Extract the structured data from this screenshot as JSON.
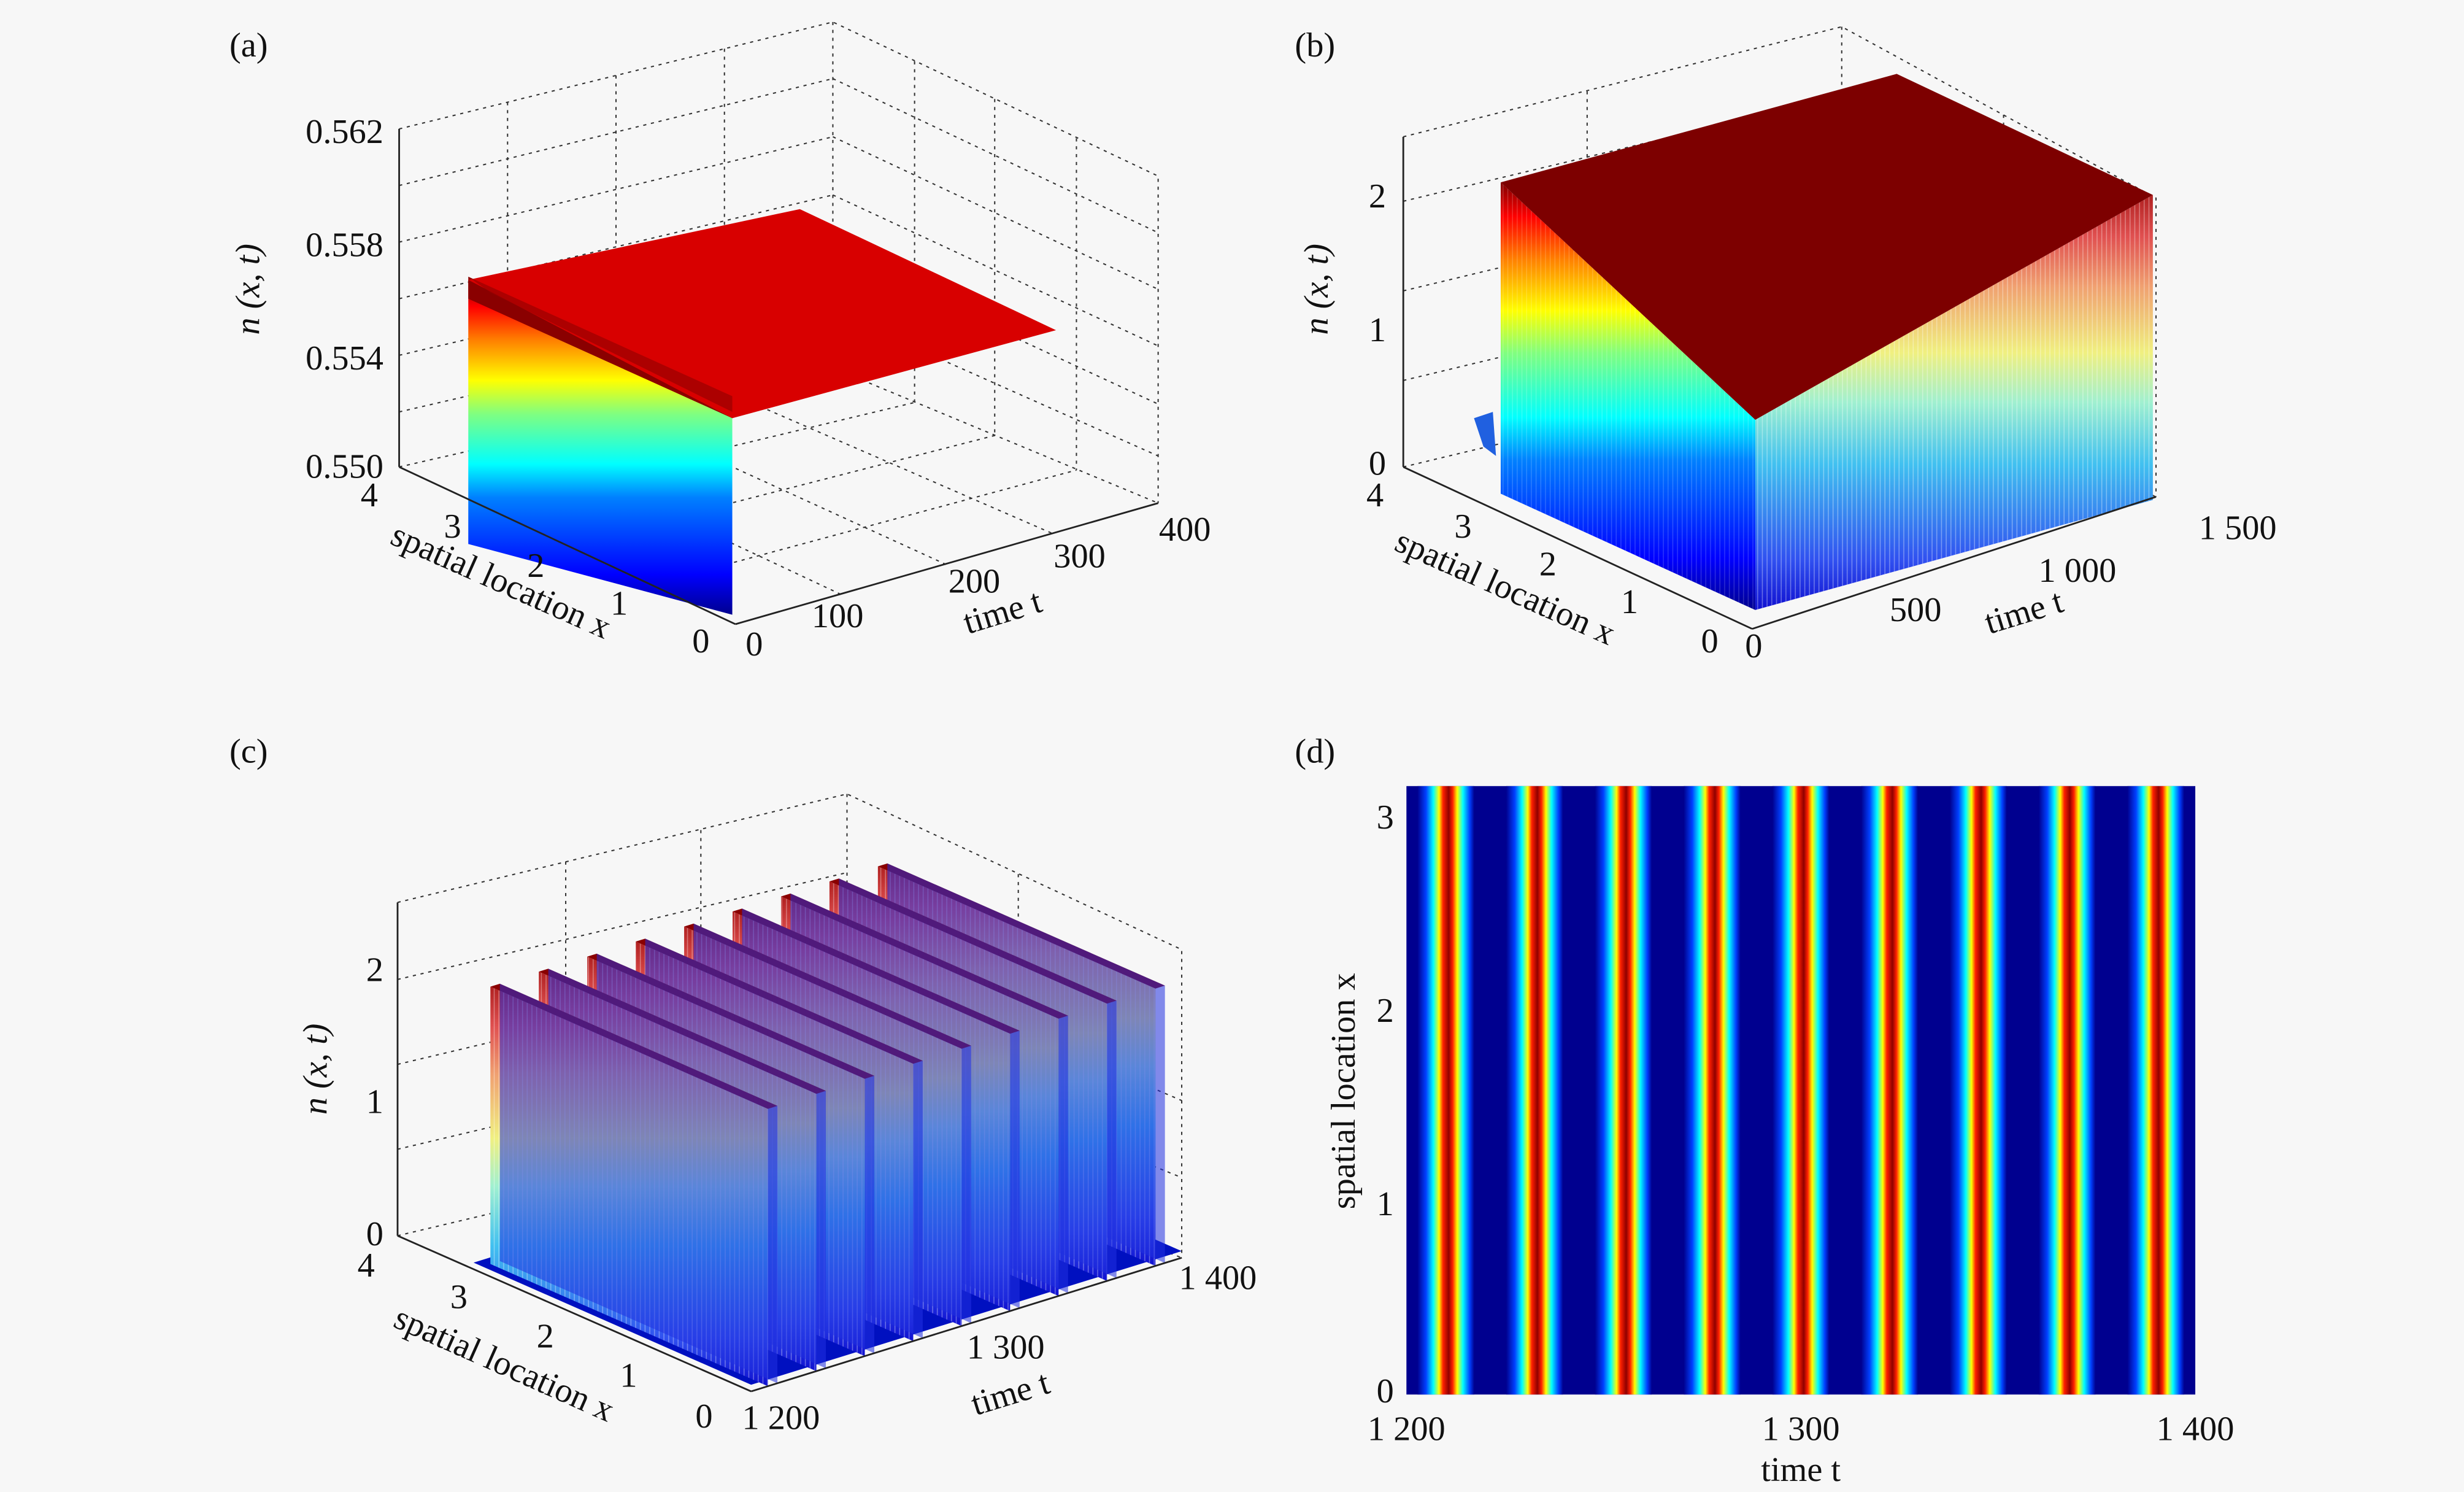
{
  "figure": {
    "background": "#f7f7f7",
    "colormap": "jet",
    "colormap_stops": [
      "#00008f",
      "#0000ff",
      "#0080ff",
      "#00ffff",
      "#80ff80",
      "#ffff00",
      "#ff8000",
      "#ff0000",
      "#800000"
    ]
  },
  "chart_data": [
    {
      "panel": "(a)",
      "type": "surface3d",
      "title": "",
      "xlabel": "spatial location x",
      "ylabel": "time t",
      "zlabel": "n (x, t)",
      "x_ticks": [
        "0",
        "1",
        "2",
        "3",
        "4"
      ],
      "t_ticks": [
        "0",
        "100",
        "200",
        "300",
        "400"
      ],
      "z_ticks": [
        "0.550",
        "0.554",
        "0.558",
        "0.562"
      ],
      "xlim": [
        0,
        4
      ],
      "tlim": [
        0,
        400
      ],
      "zlim": [
        0.55,
        0.562
      ],
      "x_range": [
        0,
        3.14
      ],
      "t_range": [
        0,
        300
      ],
      "description": "Solution converges to constant steady state; initial transient at t=0 spans roughly 0.550 to 0.5565, then flat surface at ~0.5556",
      "steady_value": 0.5556,
      "initial_min": 0.55,
      "initial_max": 0.5566
    },
    {
      "panel": "(b)",
      "type": "surface3d",
      "xlabel": "spatial location x",
      "ylabel": "time t",
      "zlabel": "n (x, t)",
      "x_ticks": [
        "0",
        "1",
        "2",
        "3",
        "4"
      ],
      "t_ticks": [
        "0",
        "500",
        "1 000",
        "1 500"
      ],
      "z_ticks": [
        "0",
        "1",
        "2"
      ],
      "xlim": [
        0,
        4
      ],
      "tlim": [
        0,
        1500
      ],
      "zlim": [
        0,
        2.5
      ],
      "x_range": [
        0,
        3.14
      ],
      "t_range": [
        0,
        1500
      ],
      "description": "Spatially homogeneous periodic oscillations densely sampled over t in [0,1500], amplitude from ~0 to ~2.1",
      "osc_min": 0.0,
      "osc_max": 2.1
    },
    {
      "panel": "(c)",
      "type": "surface3d",
      "xlabel": "spatial location x",
      "ylabel": "time t",
      "zlabel": "n (x, t)",
      "x_ticks": [
        "0",
        "1",
        "2",
        "3",
        "4"
      ],
      "t_ticks": [
        "1 200",
        "1 300",
        "1 400"
      ],
      "z_ticks": [
        "0",
        "1",
        "2"
      ],
      "xlim": [
        0,
        4
      ],
      "tlim": [
        1200,
        1400
      ],
      "zlim": [
        0,
        2.5
      ],
      "x_range": [
        0,
        3.14
      ],
      "t_range": [
        1200,
        1400
      ],
      "description": "Zoom of (b): spatially homogeneous periodic pulses",
      "peak_times": [
        1210,
        1232.5,
        1255,
        1277.5,
        1300,
        1322.5,
        1345,
        1367.5,
        1390
      ],
      "peak_value": 2.1,
      "base_value": 0.0
    },
    {
      "panel": "(d)",
      "type": "heatmap",
      "xlabel": "time t",
      "ylabel": "spatial location x",
      "x_ticks": [
        "1 200",
        "1 300",
        "1 400"
      ],
      "y_ticks": [
        "0",
        "1",
        "2",
        "3"
      ],
      "xlim": [
        1200,
        1400
      ],
      "ylim": [
        0,
        3.14
      ],
      "description": "Top view of (c): vertical stripes, values independent of x",
      "peak_times": [
        1210,
        1232.5,
        1255,
        1277.5,
        1300,
        1322.5,
        1345,
        1367.5,
        1390
      ],
      "peak_width": 4.5
    }
  ]
}
